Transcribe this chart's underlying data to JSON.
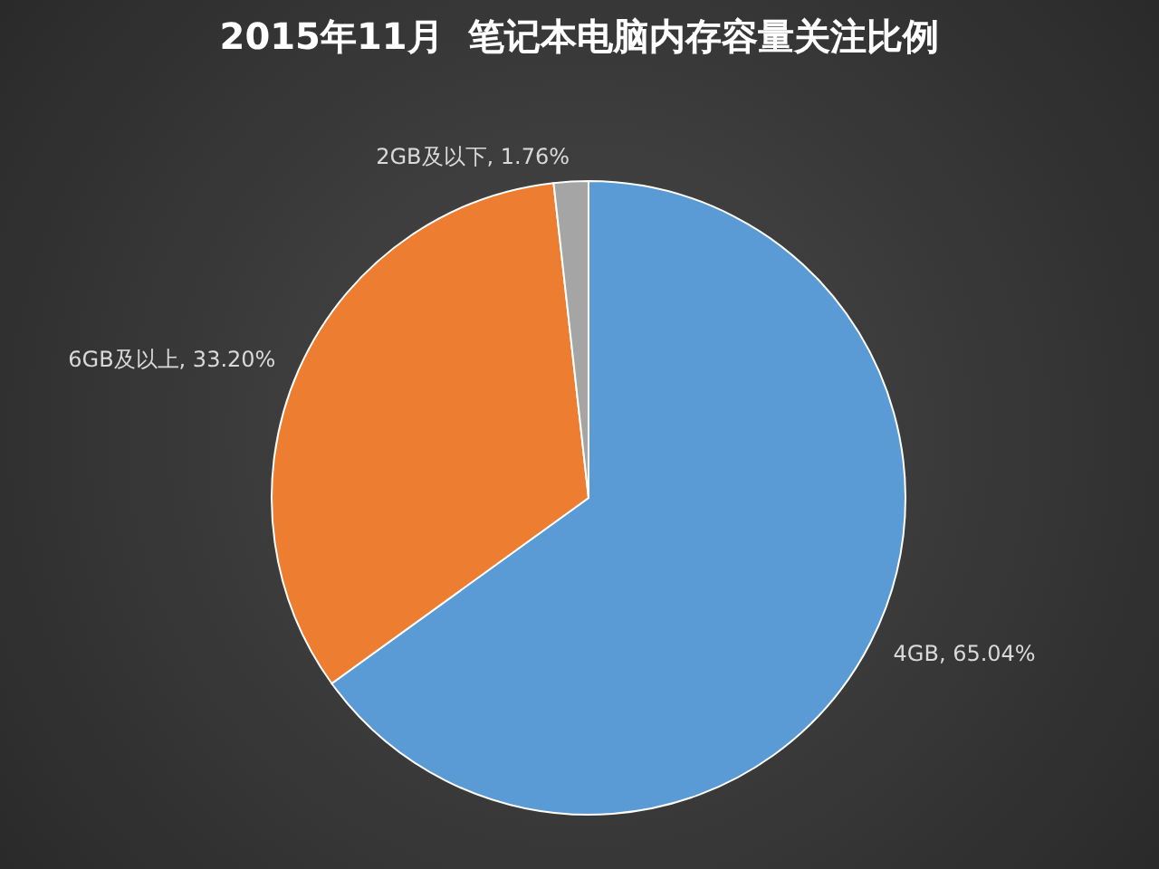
{
  "chart_data": {
    "type": "pie",
    "title": "2015年11月  笔记本电脑内存容量关注比例",
    "categories": [
      "4GB",
      "6GB及以上",
      "2GB及以下"
    ],
    "values": [
      65.04,
      33.2,
      1.76
    ],
    "colors": [
      "#5b9bd5",
      "#ed7d31",
      "#a5a5a5"
    ],
    "value_labels": [
      "65.04%",
      "33.20%",
      "1.76%"
    ]
  }
}
